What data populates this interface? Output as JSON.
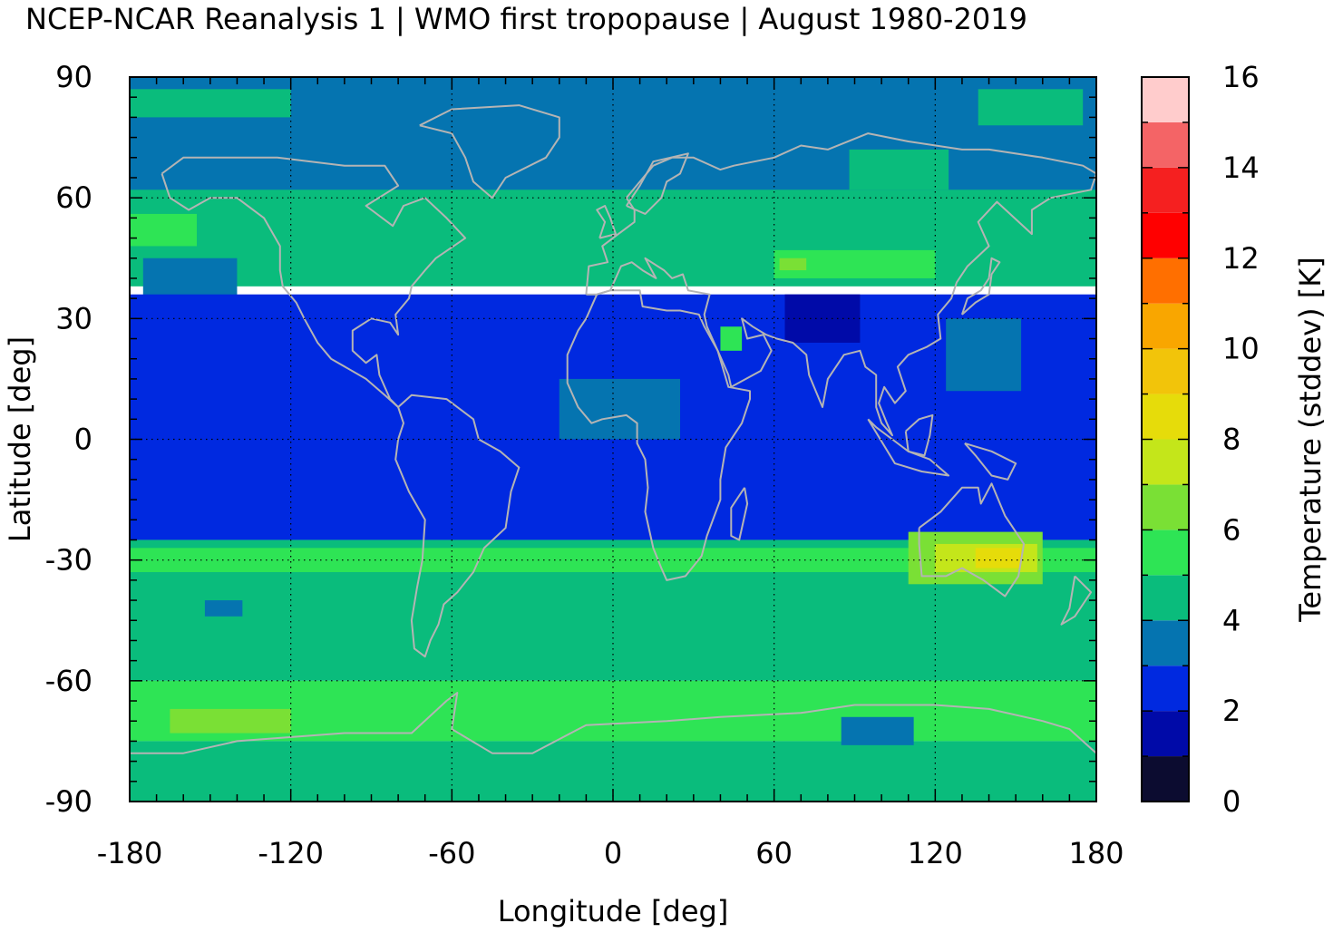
{
  "title": "NCEP-NCAR Reanalysis 1 | WMO first tropopause | August 1980-2019",
  "chart_data": {
    "type": "heatmap",
    "title": "NCEP-NCAR Reanalysis 1 | WMO first tropopause | August 1980-2019",
    "xlabel": "Longitude [deg]",
    "ylabel": "Latitude [deg]",
    "colorbar_label": "Temperature (stddev) [K]",
    "xlim": [
      -180,
      180
    ],
    "ylim": [
      -90,
      90
    ],
    "x_ticks": [
      "-180",
      "-120",
      "-60",
      "0",
      "60",
      "120",
      "180"
    ],
    "y_ticks": [
      "90",
      "60",
      "30",
      "0",
      "-30",
      "-60",
      "-90"
    ],
    "colorbar_ticks": [
      "16",
      "14",
      "12",
      "10",
      "8",
      "6",
      "4",
      "2",
      "0"
    ],
    "colorbar_range": [
      0,
      16
    ],
    "grid": true,
    "coastlines": true,
    "colorbar_bins": [
      {
        "from": 0,
        "to": 1,
        "color": "#0c0c30"
      },
      {
        "from": 1,
        "to": 2,
        "color": "#000aa8"
      },
      {
        "from": 2,
        "to": 3,
        "color": "#0029e0"
      },
      {
        "from": 3,
        "to": 4,
        "color": "#0574b0"
      },
      {
        "from": 4,
        "to": 5,
        "color": "#0abc7c"
      },
      {
        "from": 5,
        "to": 6,
        "color": "#2ee455"
      },
      {
        "from": 6,
        "to": 7,
        "color": "#7ae035"
      },
      {
        "from": 7,
        "to": 8,
        "color": "#c4e61a"
      },
      {
        "from": 8,
        "to": 9,
        "color": "#e6dc0a"
      },
      {
        "from": 9,
        "to": 10,
        "color": "#f2c40a"
      },
      {
        "from": 10,
        "to": 11,
        "color": "#f9a600"
      },
      {
        "from": 11,
        "to": 12,
        "color": "#ff6f00"
      },
      {
        "from": 12,
        "to": 13,
        "color": "#ff0000"
      },
      {
        "from": 13,
        "to": 14,
        "color": "#f52020"
      },
      {
        "from": 14,
        "to": 15,
        "color": "#f46466"
      },
      {
        "from": 15,
        "to": 16,
        "color": "#ffcccc"
      }
    ],
    "field_regions": [
      {
        "name": "polar-band-north",
        "lon": [
          -180,
          180
        ],
        "lat": [
          60,
          90
        ],
        "value": 3.5
      },
      {
        "name": "arctic-ocean-patch-west",
        "lon": [
          -180,
          -120
        ],
        "lat": [
          80,
          87
        ],
        "value": 4.5
      },
      {
        "name": "arctic-ocean-patch-east",
        "lon": [
          136,
          175
        ],
        "lat": [
          78,
          87
        ],
        "value": 4.5
      },
      {
        "name": "siberia-patch",
        "lon": [
          88,
          125
        ],
        "lat": [
          62,
          72
        ],
        "value": 4.5
      },
      {
        "name": "midlat-band-north",
        "lon": [
          -180,
          180
        ],
        "lat": [
          38,
          62
        ],
        "value": 4.5
      },
      {
        "name": "north-pacific-pocket",
        "lon": [
          -175,
          -140
        ],
        "lat": [
          33,
          45
        ],
        "value": 3.5
      },
      {
        "name": "north-pacific-green",
        "lon": [
          -180,
          -155
        ],
        "lat": [
          48,
          56
        ],
        "value": 5.5
      },
      {
        "name": "central-asia-green",
        "lon": [
          60,
          120
        ],
        "lat": [
          40,
          47
        ],
        "value": 5.5
      },
      {
        "name": "central-asia-core",
        "lon": [
          62,
          72
        ],
        "lat": [
          42,
          45
        ],
        "value": 6.5
      },
      {
        "name": "tropics",
        "lon": [
          -180,
          180
        ],
        "lat": [
          -25,
          36
        ],
        "value": 2.5
      },
      {
        "name": "arabia-patch",
        "lon": [
          40,
          48
        ],
        "lat": [
          22,
          28
        ],
        "value": 5.5
      },
      {
        "name": "tibet-minimum",
        "lon": [
          64,
          92
        ],
        "lat": [
          24,
          36
        ],
        "value": 1.5
      },
      {
        "name": "west-pacific-patch",
        "lon": [
          124,
          152
        ],
        "lat": [
          12,
          30
        ],
        "value": 3.5
      },
      {
        "name": "africa-patch",
        "lon": [
          -20,
          25
        ],
        "lat": [
          0,
          15
        ],
        "value": 3.5
      },
      {
        "name": "southern-midlat",
        "lon": [
          -180,
          180
        ],
        "lat": [
          -60,
          -25
        ],
        "value": 4.5
      },
      {
        "name": "southern-green-band",
        "lon": [
          -180,
          180
        ],
        "lat": [
          -33,
          -27
        ],
        "value": 5.5
      },
      {
        "name": "australia-warm",
        "lon": [
          110,
          160
        ],
        "lat": [
          -36,
          -23
        ],
        "value": 6.5
      },
      {
        "name": "australia-core",
        "lon": [
          120,
          158
        ],
        "lat": [
          -33,
          -26
        ],
        "value": 7.5
      },
      {
        "name": "australia-peak",
        "lon": [
          135,
          152
        ],
        "lat": [
          -32,
          -27
        ],
        "value": 8.5
      },
      {
        "name": "south-pacific-pocket",
        "lon": [
          -152,
          -138
        ],
        "lat": [
          -44,
          -40
        ],
        "value": 3.5
      },
      {
        "name": "antarctic-ring",
        "lon": [
          -180,
          180
        ],
        "lat": [
          -75,
          -60
        ],
        "value": 5.5
      },
      {
        "name": "antarctic-ring-core",
        "lon": [
          -165,
          -120
        ],
        "lat": [
          -73,
          -67
        ],
        "value": 6.5
      },
      {
        "name": "antarctic-interior",
        "lon": [
          -180,
          180
        ],
        "lat": [
          -90,
          -75
        ],
        "value": 4.5
      },
      {
        "name": "east-antarctic-pocket",
        "lon": [
          85,
          112
        ],
        "lat": [
          -76,
          -69
        ],
        "value": 3.5
      }
    ]
  }
}
